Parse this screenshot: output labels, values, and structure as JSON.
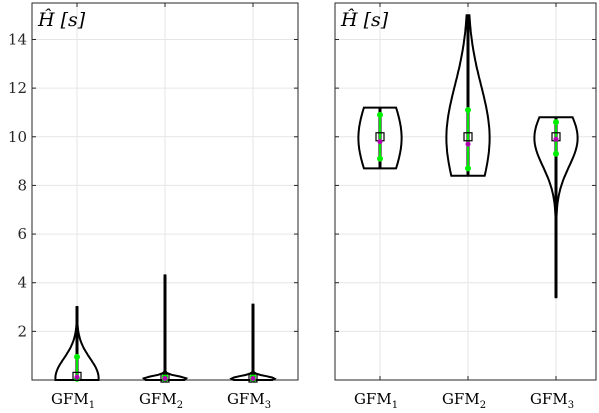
{
  "chart_data": [
    {
      "type": "violin",
      "panel_label": "Ĥ [s]",
      "categories": [
        "GFM1",
        "GFM2",
        "GFM3"
      ],
      "category_labels": [
        {
          "main": "GFM",
          "sub": "1"
        },
        {
          "main": "GFM",
          "sub": "2"
        },
        {
          "main": "GFM",
          "sub": "3"
        }
      ],
      "ylim": [
        0,
        15.5
      ],
      "yticks": [
        2,
        4,
        6,
        8,
        10,
        12,
        14
      ],
      "y_tick_labels_shown": true,
      "grid": true,
      "violins": [
        {
          "min": 0,
          "max": 3.0,
          "q1": 0.05,
          "median": 0.12,
          "mean": 0.15,
          "q3": 0.95,
          "peak": 0.08,
          "half_width_ratio": 0.6
        },
        {
          "min": 0,
          "max": 4.3,
          "q1": 0.03,
          "median": 0.06,
          "mean": 0.08,
          "q3": 0.15,
          "peak": 0.05,
          "half_width_ratio": 0.6
        },
        {
          "min": 0,
          "max": 3.1,
          "q1": 0.03,
          "median": 0.06,
          "mean": 0.08,
          "q3": 0.15,
          "peak": 0.05,
          "half_width_ratio": 0.6
        }
      ]
    },
    {
      "type": "violin",
      "panel_label": "Ĥ [s]",
      "categories": [
        "GFM1",
        "GFM2",
        "GFM3"
      ],
      "category_labels": [
        {
          "main": "GFM",
          "sub": "1"
        },
        {
          "main": "GFM",
          "sub": "2"
        },
        {
          "main": "GFM",
          "sub": "3"
        }
      ],
      "ylim": [
        0,
        15.5
      ],
      "yticks": [
        2,
        4,
        6,
        8,
        10,
        12,
        14
      ],
      "y_tick_labels_shown": false,
      "grid": true,
      "violins": [
        {
          "min": 8.7,
          "max": 11.2,
          "q1": 9.1,
          "median": 9.8,
          "mean": 10.0,
          "q3": 10.9,
          "peak": 9.95,
          "half_width_ratio": 0.6
        },
        {
          "min": 8.4,
          "max": 15.0,
          "q1": 8.7,
          "median": 9.7,
          "mean": 10.0,
          "q3": 11.1,
          "peak": 9.95,
          "half_width_ratio": 0.6
        },
        {
          "min": 3.4,
          "max": 10.8,
          "q1": 9.3,
          "median": 9.9,
          "mean": 10.0,
          "q3": 10.6,
          "peak": 9.95,
          "half_width_ratio": 0.6
        }
      ]
    }
  ]
}
